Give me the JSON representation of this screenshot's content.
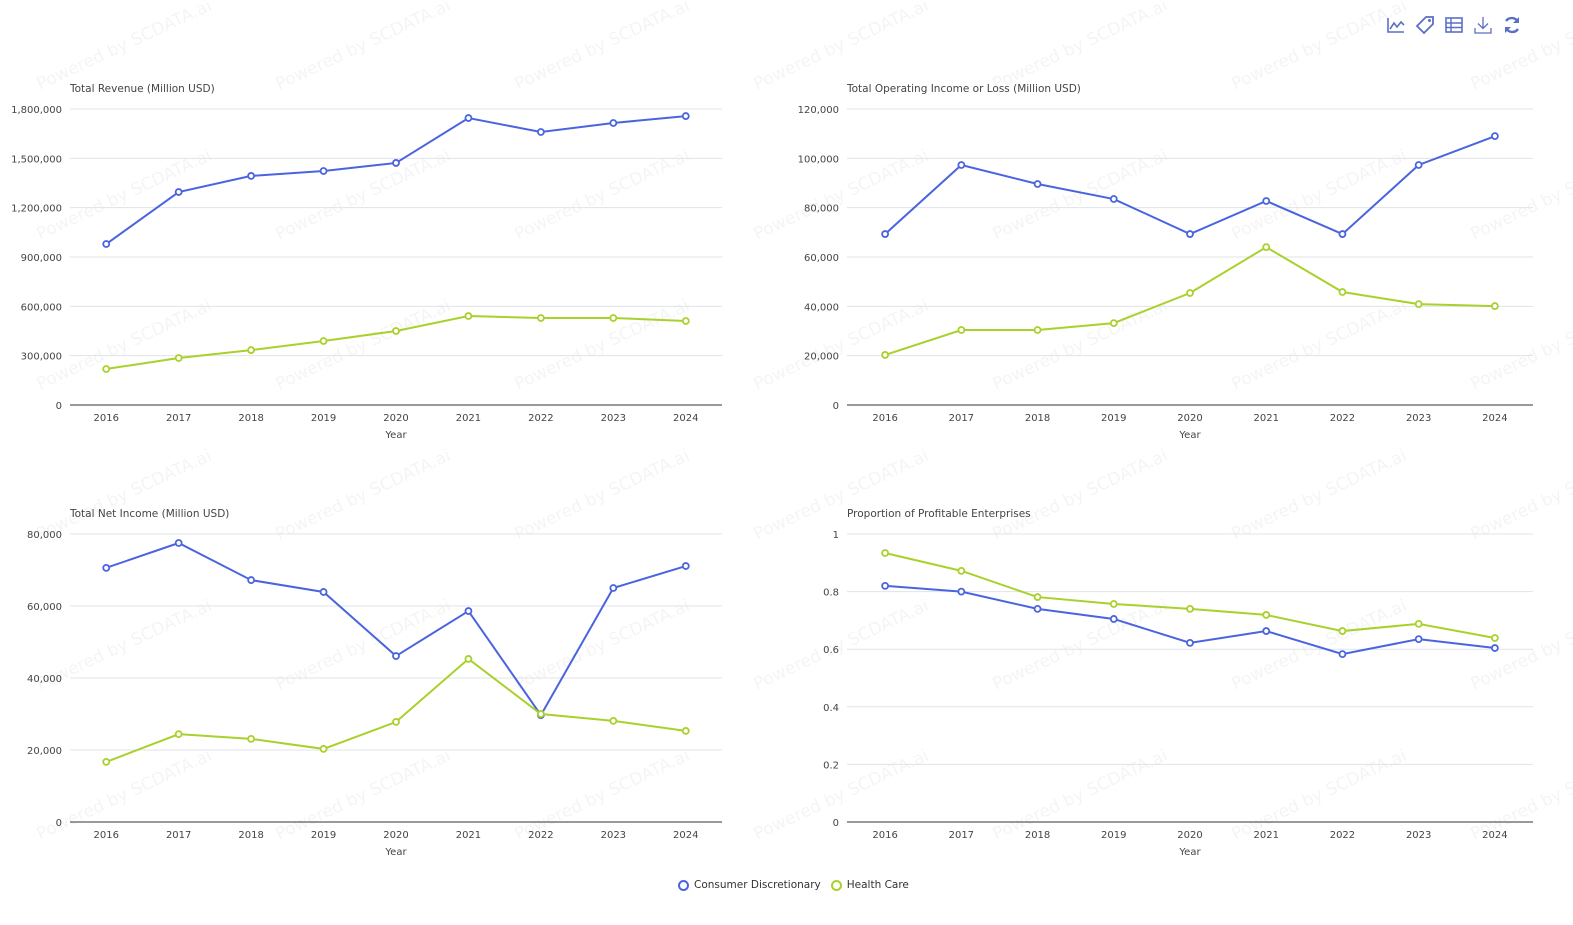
{
  "watermark": "Powered by SCDATA.ai",
  "toolbar": {
    "icons": [
      "line-chart-icon",
      "tag-icon",
      "data-table-icon",
      "download-icon",
      "refresh-icon"
    ]
  },
  "colors": {
    "series": [
      "#4a64e0",
      "#a8d12b"
    ],
    "grid": "#e0e3ea",
    "axis": "#333333",
    "text": "#444444"
  },
  "legend": [
    {
      "name": "Consumer Discretionary"
    },
    {
      "name": "Health Care"
    }
  ],
  "chart_data": [
    {
      "type": "line",
      "title": "Total Revenue (Million USD)",
      "xlabel": "Year",
      "ylabel": "",
      "categories": [
        "2016",
        "2017",
        "2018",
        "2019",
        "2020",
        "2021",
        "2022",
        "2023",
        "2024"
      ],
      "ylim": [
        0,
        1800000
      ],
      "yticks": [
        0,
        300000,
        600000,
        900000,
        1200000,
        1500000,
        1800000
      ],
      "ytick_labels": [
        "0",
        "300,000",
        "600,000",
        "900,000",
        "1,200,000",
        "1,500,000",
        "1,800,000"
      ],
      "series": [
        {
          "name": "Consumer Discretionary",
          "values": [
            979000,
            1295000,
            1393000,
            1423000,
            1472000,
            1745000,
            1660000,
            1715000,
            1757000
          ]
        },
        {
          "name": "Health Care",
          "values": [
            219000,
            286000,
            334000,
            389000,
            450000,
            541000,
            529000,
            529000,
            511000
          ]
        }
      ]
    },
    {
      "type": "line",
      "title": "Total Operating Income or Loss (Million USD)",
      "xlabel": "Year",
      "ylabel": "",
      "categories": [
        "2016",
        "2017",
        "2018",
        "2019",
        "2020",
        "2021",
        "2022",
        "2023",
        "2024"
      ],
      "ylim": [
        0,
        120000
      ],
      "yticks": [
        0,
        20000,
        40000,
        60000,
        80000,
        100000,
        120000
      ],
      "ytick_labels": [
        "0",
        "20,000",
        "40,000",
        "60,000",
        "80,000",
        "100,000",
        "120,000"
      ],
      "series": [
        {
          "name": "Consumer Discretionary",
          "values": [
            69300,
            97300,
            89600,
            83500,
            69300,
            82700,
            69300,
            97300,
            109000
          ]
        },
        {
          "name": "Health Care",
          "values": [
            20300,
            30400,
            30400,
            33200,
            45400,
            64000,
            45800,
            40900,
            40100
          ]
        }
      ]
    },
    {
      "type": "line",
      "title": "Total Net Income (Million USD)",
      "xlabel": "Year",
      "ylabel": "",
      "categories": [
        "2016",
        "2017",
        "2018",
        "2019",
        "2020",
        "2021",
        "2022",
        "2023",
        "2024"
      ],
      "ylim": [
        0,
        80000
      ],
      "yticks": [
        0,
        20000,
        40000,
        60000,
        80000
      ],
      "ytick_labels": [
        "0",
        "20,000",
        "40,000",
        "60,000",
        "80,000"
      ],
      "series": [
        {
          "name": "Consumer Discretionary",
          "values": [
            70600,
            77500,
            67200,
            63900,
            46100,
            58600,
            29700,
            65000,
            71100
          ]
        },
        {
          "name": "Health Care",
          "values": [
            16700,
            24400,
            23100,
            20300,
            27800,
            45300,
            30000,
            28100,
            25300
          ]
        }
      ]
    },
    {
      "type": "line",
      "title": "Proportion of Profitable Enterprises",
      "xlabel": "Year",
      "ylabel": "",
      "categories": [
        "2016",
        "2017",
        "2018",
        "2019",
        "2020",
        "2021",
        "2022",
        "2023",
        "2024"
      ],
      "ylim": [
        0,
        1
      ],
      "yticks": [
        0,
        0.2,
        0.4,
        0.6,
        0.8,
        1
      ],
      "ytick_labels": [
        "0",
        "0.2",
        "0.4",
        "0.6",
        "0.8",
        "1"
      ],
      "series": [
        {
          "name": "Consumer Discretionary",
          "values": [
            0.82,
            0.8,
            0.74,
            0.705,
            0.622,
            0.663,
            0.583,
            0.635,
            0.604
          ]
        },
        {
          "name": "Health Care",
          "values": [
            0.934,
            0.872,
            0.781,
            0.757,
            0.74,
            0.719,
            0.663,
            0.688,
            0.639
          ]
        }
      ]
    }
  ]
}
